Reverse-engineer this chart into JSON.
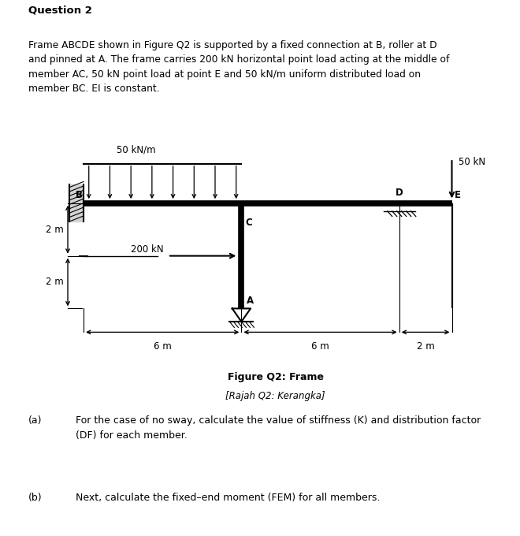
{
  "title": "Question 2",
  "paragraph": "Frame ABCDE shown in Figure Q2 is supported by a fixed connection at B, roller at D\nand pinned at A. The frame carries 200 kN horizontal point load acting at the middle of\nmember AC, 50 kN point load at point E and 50 kN/m uniform distributed load on\nmember BC. EI is constant.",
  "fig_caption_bold": "Figure Q2: Frame",
  "fig_caption_italic": "[Rajah Q2: Kerangka]",
  "part_a_label": "(a)",
  "part_a_text": "For the case of no sway, calculate the value of stiffness (K) and distribution factor\n(DF) for each member.",
  "part_b_label": "(b)",
  "part_b_text": "Next, calculate the fixed–end moment (FEM) for all members.",
  "bg_color": "#ffffff",
  "udl_label": "50 kN/m",
  "point_load_label": "200 kN",
  "point_load_E_label": "50 kN",
  "dim_BC": "6 m",
  "dim_CD": "6 m",
  "dim_DE": "2 m",
  "dim_2m_upper": "2 m",
  "dim_2m_lower": "2 m",
  "node_labels": [
    "B",
    "C",
    "A",
    "D",
    "E"
  ]
}
